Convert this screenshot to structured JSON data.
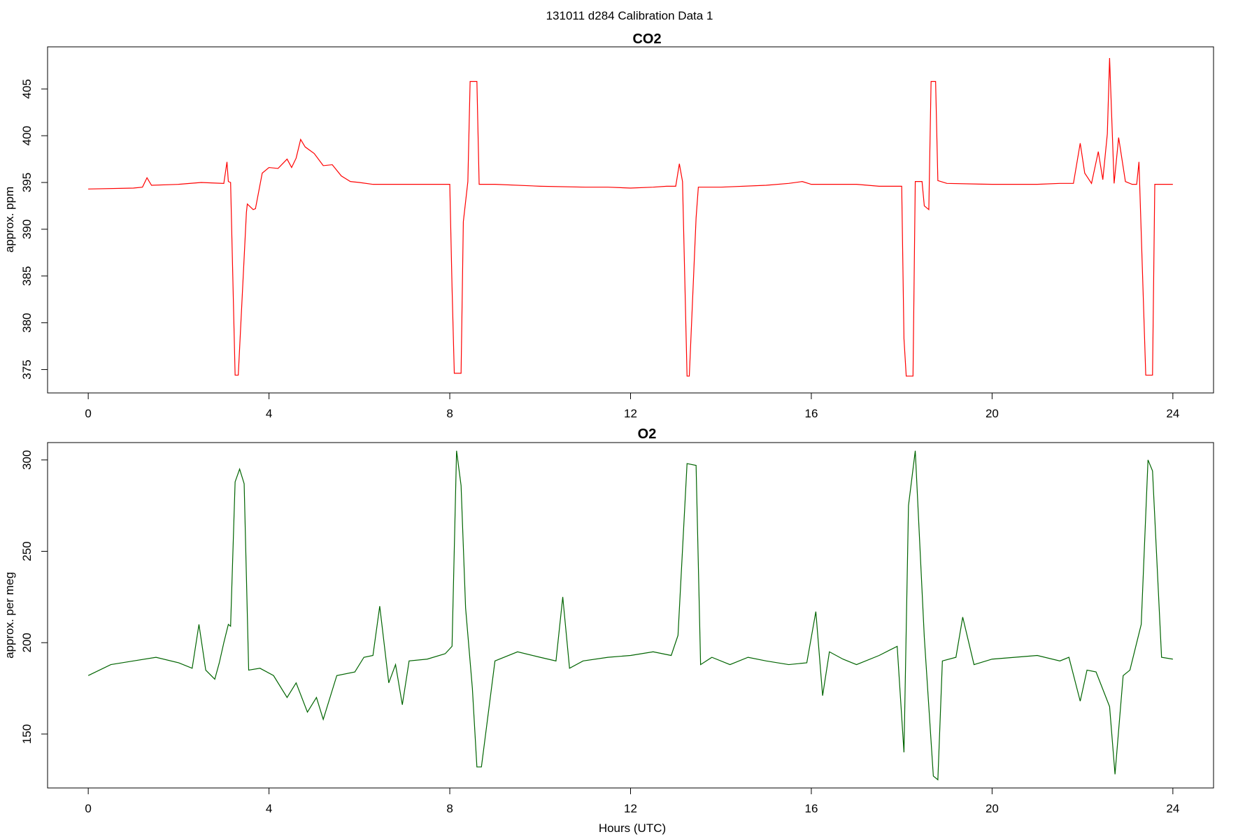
{
  "figure": {
    "title": "131011   d284   Calibration Data 1"
  },
  "chart_data": [
    {
      "type": "line",
      "title": "CO2",
      "xlabel": "",
      "ylabel": "approx. ppm",
      "color": "#ff0000",
      "xlim": [
        -0.9,
        24.9
      ],
      "ylim": [
        372.5,
        409.5
      ],
      "xticks": [
        0,
        4,
        8,
        12,
        16,
        20,
        24
      ],
      "yticks": [
        375,
        380,
        385,
        390,
        395,
        400,
        405
      ],
      "x": [
        0,
        1,
        1.2,
        1.3,
        1.4,
        2,
        2.5,
        3,
        3.07,
        3.1,
        3.15,
        3.25,
        3.32,
        3.5,
        3.52,
        3.65,
        3.7,
        3.85,
        4,
        4.2,
        4.4,
        4.5,
        4.6,
        4.7,
        4.8,
        5,
        5.2,
        5.4,
        5.6,
        5.8,
        6,
        6.3,
        7,
        7.5,
        8,
        8.05,
        8.1,
        8.25,
        8.3,
        8.4,
        8.45,
        8.6,
        8.65,
        9,
        10,
        11,
        11.5,
        12,
        12.5,
        12.8,
        13,
        13.08,
        13.15,
        13.25,
        13.3,
        13.45,
        13.5,
        14,
        15,
        15.5,
        15.8,
        16,
        17,
        17.5,
        18,
        18.05,
        18.1,
        18.25,
        18.3,
        18.45,
        18.5,
        18.6,
        18.65,
        18.75,
        18.8,
        19,
        20,
        21,
        21.5,
        21.8,
        21.95,
        22.05,
        22.2,
        22.35,
        22.45,
        22.55,
        22.6,
        22.7,
        22.8,
        22.95,
        23.1,
        23.2,
        23.25,
        23.4,
        23.55,
        23.6,
        24
      ],
      "y": [
        394.3,
        394.4,
        394.5,
        395.5,
        394.7,
        394.8,
        395,
        394.9,
        397.2,
        395.1,
        395,
        374.4,
        374.4,
        391.8,
        392.7,
        392.1,
        392.2,
        396,
        396.6,
        396.5,
        397.5,
        396.6,
        397.6,
        399.6,
        398.8,
        398.1,
        396.8,
        396.9,
        395.7,
        395.1,
        395,
        394.8,
        394.8,
        394.8,
        394.8,
        383.8,
        374.6,
        374.6,
        390.8,
        395.1,
        405.8,
        405.8,
        394.8,
        394.8,
        394.6,
        394.5,
        394.5,
        394.4,
        394.5,
        394.6,
        394.6,
        397,
        395.1,
        374.3,
        374.3,
        391.2,
        394.5,
        394.5,
        394.7,
        394.9,
        395.1,
        394.8,
        394.8,
        394.6,
        394.6,
        378.3,
        374.3,
        374.3,
        395.1,
        395.1,
        392.5,
        392.1,
        405.8,
        405.8,
        395.2,
        394.9,
        394.8,
        394.8,
        394.9,
        394.9,
        399.2,
        396,
        394.9,
        398.3,
        395.3,
        400.2,
        408.3,
        394.9,
        399.8,
        395.1,
        394.8,
        394.8,
        397.2,
        374.4,
        374.4,
        394.8,
        394.8
      ]
    },
    {
      "type": "line",
      "title": "O2",
      "xlabel": "Hours (UTC)",
      "ylabel": "approx. per meg",
      "color": "#006400",
      "xlim": [
        -0.9,
        24.9
      ],
      "ylim": [
        120.5,
        309.5
      ],
      "xticks": [
        0,
        4,
        8,
        12,
        16,
        20,
        24
      ],
      "yticks": [
        150,
        200,
        250,
        300
      ],
      "x": [
        0,
        0.5,
        1,
        1.5,
        2,
        2.3,
        2.45,
        2.6,
        2.8,
        2.9,
        3.0,
        3.1,
        3.15,
        3.25,
        3.35,
        3.45,
        3.55,
        3.8,
        4.1,
        4.4,
        4.6,
        4.85,
        5.05,
        5.2,
        5.5,
        5.9,
        6.1,
        6.3,
        6.45,
        6.65,
        6.8,
        6.95,
        7.1,
        7.5,
        7.9,
        8.05,
        8.15,
        8.25,
        8.35,
        8.5,
        8.6,
        8.7,
        9,
        9.5,
        10,
        10.35,
        10.5,
        10.65,
        10.95,
        11.5,
        12,
        12.5,
        12.9,
        13.05,
        13.25,
        13.45,
        13.55,
        13.8,
        14.2,
        14.6,
        15,
        15.5,
        15.9,
        16.1,
        16.25,
        16.4,
        16.7,
        17,
        17.5,
        17.9,
        18.05,
        18.15,
        18.3,
        18.5,
        18.7,
        18.8,
        18.9,
        19.2,
        19.35,
        19.6,
        20,
        20.5,
        21,
        21.5,
        21.7,
        21.95,
        22.1,
        22.3,
        22.6,
        22.72,
        22.9,
        23.05,
        23.3,
        23.45,
        23.55,
        23.75,
        24
      ],
      "y": [
        182,
        188,
        190,
        192,
        189,
        186,
        210,
        185,
        180,
        189,
        200,
        210,
        209,
        288,
        295,
        287,
        185,
        186,
        182,
        170,
        178,
        162,
        170,
        158,
        182,
        184,
        192,
        193,
        220,
        178,
        188,
        166,
        190,
        191,
        194,
        198,
        305,
        286,
        219,
        175,
        132,
        132,
        190,
        195,
        192,
        190,
        225,
        186,
        190,
        192,
        193,
        195,
        193,
        204,
        298,
        297,
        188,
        192,
        188,
        192,
        190,
        188,
        189,
        217,
        171,
        195,
        191,
        188,
        193,
        198,
        140,
        275,
        305,
        203,
        127,
        125,
        190,
        192,
        214,
        188,
        191,
        192,
        193,
        190,
        192,
        168,
        185,
        184,
        165,
        128,
        182,
        185,
        210,
        300,
        294,
        192,
        191
      ]
    }
  ]
}
